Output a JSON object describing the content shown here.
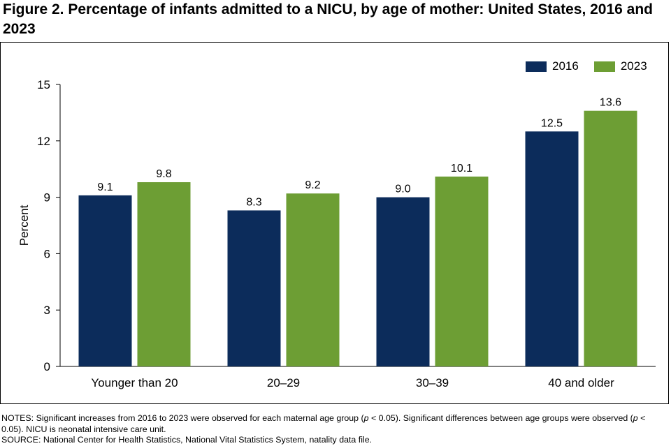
{
  "title": "Figure 2. Percentage of infants admitted to a NICU, by age of mother: United States, 2016 and 2023",
  "notes": {
    "line1_a": "NOTES: Significant increases from 2016 to 2023 were observed for each maternal age group (",
    "p1": "p",
    "line1_b": " < 0.05). Significant differences between age groups were observed (",
    "p2": "p",
    "line1_c": " < 0.05). NICU is neonatal intensive care unit.",
    "source": "SOURCE: National Center for Health Statistics, National Vital Statistics System, natality data file."
  },
  "colors": {
    "2016": "#0c2c5b",
    "2023": "#6d9e34"
  },
  "chart_data": {
    "type": "bar",
    "categories": [
      "Younger than 20",
      "20–29",
      "30–39",
      "40 and older"
    ],
    "series": [
      {
        "name": "2016",
        "values": [
          9.1,
          8.3,
          9.0,
          12.5
        ],
        "labels": [
          "9.1",
          "8.3",
          "9.0",
          "12.5"
        ]
      },
      {
        "name": "2023",
        "values": [
          9.8,
          9.2,
          10.1,
          13.6
        ],
        "labels": [
          "9.8",
          "9.2",
          "10.1",
          "13.6"
        ]
      }
    ],
    "ylabel": "Percent",
    "xlabel": "",
    "ylim": [
      0,
      15
    ],
    "yticks": [
      0,
      3,
      6,
      9,
      12,
      15
    ],
    "legend_position": "top-right",
    "grid": false
  }
}
